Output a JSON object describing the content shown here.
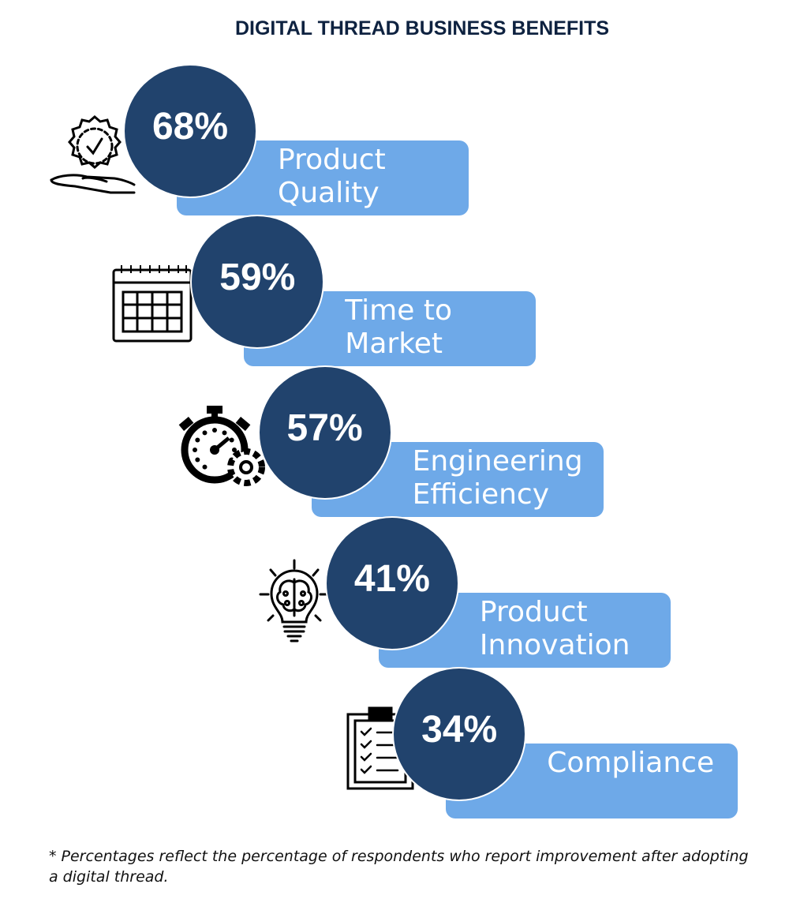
{
  "title": "DIGITAL THREAD BUSINESS BENEFITS",
  "chart_data": {
    "type": "bar",
    "title": "DIGITAL THREAD BUSINESS BENEFITS",
    "categories": [
      "Product\nQuality",
      "Time to\nMarket",
      "Engineering\nEfficiency",
      "Product\nInnovation",
      "Compliance"
    ],
    "values": [
      68,
      59,
      57,
      41,
      34
    ],
    "value_labels": [
      "68%",
      "59%",
      "57%",
      "41%",
      "34%"
    ],
    "icons": [
      "quality-badge-hand-icon",
      "calendar-icon",
      "stopwatch-gear-icon",
      "lightbulb-brain-icon",
      "clipboard-checklist-icon"
    ],
    "unit": "%"
  },
  "colors": {
    "circle": "#21436d",
    "box": "#6ea9e8",
    "title": "#0e2240"
  },
  "footnote": "* Percentages reflect the percentage of respondents who report improvement after adopting a digital thread."
}
